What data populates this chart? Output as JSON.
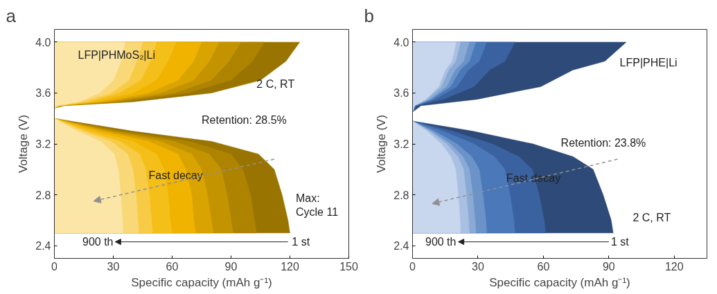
{
  "chart_data": [
    {
      "type": "area",
      "title": "a",
      "xlabel": "Specific capacity (mAh g⁻¹)",
      "ylabel": "Voltage (V)",
      "xlim": [
        0,
        150
      ],
      "xticks": [
        0,
        30,
        60,
        90,
        120,
        150
      ],
      "ylim": [
        2.3,
        4.1
      ],
      "yticks": [
        {
          "value": 2.4,
          "label": "2.4"
        },
        {
          "value": 2.8,
          "label": "2.8"
        },
        {
          "value": 3.2,
          "label": "3.2"
        },
        {
          "value": 3.6,
          "label": "3.6"
        },
        {
          "value": 4.0,
          "label": "4.0"
        }
      ],
      "annotations": [
        "LFP|PHMoS₂|Li",
        "2 C, RT",
        "Retention: 28.5%",
        "Fast decay",
        "Max:\nCycle 11",
        "900 th",
        "1 st"
      ],
      "series": [
        {
          "color": "#9a7400",
          "x": [
            0,
            5,
            40,
            80,
            105,
            118,
            125,
            0,
            40,
            80,
            104,
            112,
            116,
            119,
            120
          ],
          "values": [
            3.48,
            3.5,
            3.53,
            3.6,
            3.7,
            3.85,
            4.0,
            3.4,
            3.3,
            3.22,
            3.12,
            3.0,
            2.8,
            2.6,
            2.5
          ]
        },
        {
          "color": "#ad8300",
          "x": [
            0,
            4,
            34,
            68,
            90,
            101,
            107,
            0,
            34,
            69,
            90,
            96,
            100,
            102,
            103
          ],
          "values": [
            3.48,
            3.5,
            3.53,
            3.6,
            3.7,
            3.85,
            4.0,
            3.4,
            3.3,
            3.22,
            3.12,
            3.0,
            2.8,
            2.6,
            2.5
          ]
        },
        {
          "color": "#c49400",
          "x": [
            0,
            4,
            30,
            61,
            80,
            89,
            95,
            0,
            30,
            61,
            79,
            85,
            88,
            90,
            91
          ],
          "values": [
            3.48,
            3.5,
            3.53,
            3.6,
            3.7,
            3.85,
            4.0,
            3.4,
            3.3,
            3.22,
            3.12,
            3.0,
            2.8,
            2.6,
            2.5
          ]
        },
        {
          "color": "#d9a300",
          "x": [
            0,
            3,
            27,
            54,
            71,
            79,
            84,
            0,
            27,
            54,
            70,
            75,
            78,
            80,
            81
          ],
          "values": [
            3.48,
            3.5,
            3.53,
            3.6,
            3.7,
            3.85,
            4.0,
            3.4,
            3.3,
            3.22,
            3.12,
            3.0,
            2.8,
            2.6,
            2.5
          ]
        },
        {
          "color": "#efb300",
          "x": [
            0,
            3,
            24,
            48,
            63,
            71,
            75,
            0,
            24,
            48,
            63,
            67,
            70,
            71,
            72
          ],
          "values": [
            3.48,
            3.5,
            3.53,
            3.6,
            3.7,
            3.85,
            4.0,
            3.4,
            3.3,
            3.22,
            3.12,
            3.0,
            2.8,
            2.6,
            2.5
          ]
        },
        {
          "color": "#f5bf1a",
          "x": [
            0,
            2,
            20,
            40,
            52,
            58,
            62,
            0,
            20,
            40,
            52,
            56,
            58,
            59,
            60
          ],
          "values": [
            3.48,
            3.5,
            3.53,
            3.6,
            3.7,
            3.85,
            4.0,
            3.4,
            3.3,
            3.22,
            3.12,
            3.0,
            2.8,
            2.6,
            2.5
          ]
        },
        {
          "color": "#f7cb45",
          "x": [
            0,
            2,
            17,
            33,
            44,
            49,
            52,
            0,
            16.5,
            33.5,
            43.5,
            46.5,
            48.4,
            49.5,
            50
          ],
          "values": [
            3.48,
            3.5,
            3.53,
            3.6,
            3.7,
            3.85,
            4.0,
            3.4,
            3.3,
            3.22,
            3.12,
            3.0,
            2.8,
            2.6,
            2.5
          ]
        },
        {
          "color": "#f9d878",
          "x": [
            0,
            2,
            14,
            29,
            38,
            42,
            45,
            0,
            14.2,
            28.8,
            37.4,
            40,
            41.6,
            42.6,
            43
          ],
          "values": [
            3.48,
            3.5,
            3.53,
            3.6,
            3.7,
            3.85,
            4.0,
            3.4,
            3.3,
            3.22,
            3.12,
            3.0,
            2.8,
            2.6,
            2.5
          ]
        },
        {
          "color": "#fbe6a8",
          "x": [
            0,
            1,
            12,
            23,
            30,
            34,
            36,
            0,
            11.6,
            23.5,
            30.5,
            32.6,
            33.8,
            34.7,
            35
          ],
          "values": [
            3.48,
            3.5,
            3.53,
            3.6,
            3.7,
            3.85,
            4.0,
            3.4,
            3.3,
            3.22,
            3.12,
            3.0,
            2.8,
            2.6,
            2.5
          ]
        }
      ]
    },
    {
      "type": "area",
      "title": "b",
      "xlabel": "Specific capacity (mAh g⁻¹)",
      "ylabel": "Voltage (V)",
      "xlim": [
        0,
        135
      ],
      "xticks": [
        0,
        30,
        60,
        90,
        120
      ],
      "ylim": [
        2.3,
        4.1
      ],
      "yticks": [
        {
          "value": 2.4,
          "label": "2.4"
        },
        {
          "value": 2.8,
          "label": "2.8"
        },
        {
          "value": 3.2,
          "label": "3.2"
        },
        {
          "value": 3.6,
          "label": "3.6"
        },
        {
          "value": 4.0,
          "label": "4.0"
        }
      ],
      "annotations": [
        "LFP|PHE|Li",
        "Retention: 23.8%",
        "Fast decay",
        "2 C, RT",
        "900 th",
        "1 st"
      ],
      "series": [
        {
          "color": "#2e4a78",
          "x": [
            0,
            3.9,
            29.4,
            58.8,
            73.5,
            88.2,
            98,
            0,
            27.6,
            55.2,
            73.6,
            82.8,
            87.4,
            91.1,
            92
          ],
          "values": [
            3.45,
            3.5,
            3.55,
            3.65,
            3.78,
            3.85,
            4.0,
            3.38,
            3.3,
            3.2,
            3.1,
            3.0,
            2.8,
            2.6,
            2.5
          ]
        },
        {
          "color": "#3b62a0",
          "x": [
            0,
            1.9,
            14.1,
            28.2,
            35.3,
            42.3,
            47,
            0,
            18.3,
            36.6,
            48.8,
            54.9,
            58,
            60.4,
            61
          ],
          "values": [
            3.45,
            3.5,
            3.55,
            3.65,
            3.78,
            3.85,
            4.0,
            3.38,
            3.3,
            3.2,
            3.1,
            3.0,
            2.8,
            2.6,
            2.5
          ]
        },
        {
          "color": "#4a78b8",
          "x": [
            0,
            1.4,
            10.2,
            20.4,
            25.5,
            30.6,
            34,
            0,
            14.1,
            28.2,
            37.6,
            42.3,
            44.7,
            46.5,
            47
          ],
          "values": [
            3.45,
            3.5,
            3.55,
            3.65,
            3.78,
            3.85,
            4.0,
            3.38,
            3.3,
            3.2,
            3.1,
            3.0,
            2.8,
            2.6,
            2.5
          ]
        },
        {
          "color": "#6b93c8",
          "x": [
            0,
            1.2,
            8.7,
            17.4,
            21.8,
            26.1,
            29,
            0,
            10.2,
            20.4,
            27.2,
            30.6,
            32.3,
            33.7,
            34
          ],
          "values": [
            3.45,
            3.5,
            3.55,
            3.65,
            3.78,
            3.85,
            4.0,
            3.38,
            3.3,
            3.2,
            3.1,
            3.0,
            2.8,
            2.6,
            2.5
          ]
        },
        {
          "color": "#8aaad6",
          "x": [
            0,
            1,
            7.8,
            15.6,
            19.5,
            23.4,
            26,
            0,
            8.7,
            17.4,
            23.2,
            26.1,
            27.6,
            28.7,
            29
          ],
          "values": [
            3.45,
            3.5,
            3.55,
            3.65,
            3.78,
            3.85,
            4.0,
            3.38,
            3.3,
            3.2,
            3.1,
            3.0,
            2.8,
            2.6,
            2.5
          ]
        },
        {
          "color": "#a9c0e2",
          "x": [
            0,
            0.9,
            6.6,
            13.2,
            16.5,
            19.8,
            22,
            0,
            7.8,
            15.6,
            20.8,
            23.4,
            24.7,
            25.7,
            26
          ],
          "values": [
            3.45,
            3.5,
            3.55,
            3.65,
            3.78,
            3.85,
            4.0,
            3.38,
            3.3,
            3.2,
            3.1,
            3.0,
            2.8,
            2.6,
            2.5
          ]
        },
        {
          "color": "#c8d6ee",
          "x": [
            0,
            0.8,
            6,
            12,
            15,
            18,
            20,
            0,
            6.6,
            13.2,
            17.6,
            19.8,
            20.9,
            21.8,
            22
          ],
          "values": [
            3.45,
            3.5,
            3.55,
            3.65,
            3.78,
            3.85,
            4.0,
            3.38,
            3.3,
            3.2,
            3.1,
            3.0,
            2.8,
            2.6,
            2.5
          ]
        }
      ]
    }
  ]
}
